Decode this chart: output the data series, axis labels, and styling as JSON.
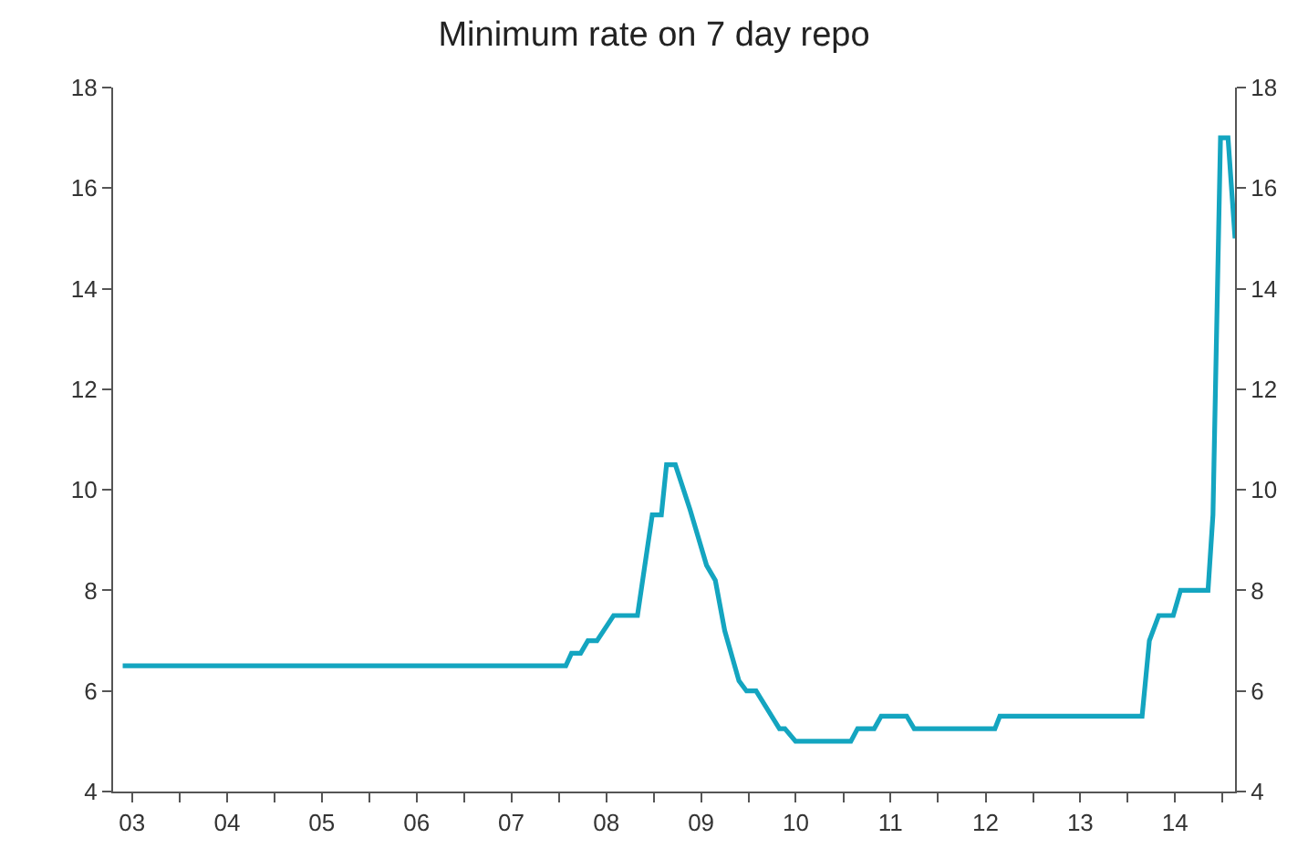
{
  "chart_data": {
    "type": "line",
    "title": "Minimum rate on 7 day repo",
    "x": [
      "2003-05-27",
      "2008-01-28",
      "2008-02-19",
      "2008-03-25",
      "2008-04-22",
      "2008-05-27",
      "2008-07-30",
      "2008-10-30",
      "2008-12-26",
      "2009-01-30",
      "2009-02-19",
      "2009-03-25",
      "2009-05-21",
      "2009-07-23",
      "2009-08-26",
      "2009-10-01",
      "2009-11-25",
      "2009-12-24",
      "2010-01-30",
      "2010-04-30",
      "2010-05-21",
      "2010-07-01",
      "2011-01-30",
      "2011-02-25",
      "2011-04-30",
      "2011-05-27",
      "2011-09-02",
      "2011-10-01",
      "2012-08-07",
      "2012-08-26",
      "2014-02-25",
      "2014-03-25",
      "2014-04-30",
      "2014-06-25",
      "2014-07-23",
      "2014-11-06",
      "2014-11-25",
      "2014-12-24",
      "2015-01-22",
      "2015-02-18"
    ],
    "series": [
      {
        "color": "#14a5c0",
        "values": [
          6.5,
          6.5,
          6.75,
          6.75,
          7.0,
          7.0,
          7.5,
          7.5,
          9.5,
          9.5,
          10.5,
          10.5,
          9.6,
          8.5,
          8.2,
          7.2,
          6.2,
          6.0,
          6.0,
          5.25,
          5.25,
          5.0,
          5.0,
          5.25,
          5.25,
          5.5,
          5.5,
          5.25,
          5.25,
          5.5,
          5.5,
          7.0,
          7.5,
          7.5,
          8.0,
          8.0,
          9.5,
          17,
          17,
          15
        ]
      }
    ],
    "xlim": [
      "2003-04-20",
      "2015-02-18"
    ],
    "xticks": [
      {
        "value": "2003-07-02",
        "label": "03"
      },
      {
        "value": "2004-01-01",
        "label": null
      },
      {
        "value": "2004-07-02",
        "label": "04"
      },
      {
        "value": "2005-01-01",
        "label": null
      },
      {
        "value": "2005-07-02",
        "label": "05"
      },
      {
        "value": "2006-01-01",
        "label": null
      },
      {
        "value": "2006-07-02",
        "label": "06"
      },
      {
        "value": "2007-01-01",
        "label": null
      },
      {
        "value": "2007-07-02",
        "label": "07"
      },
      {
        "value": "2008-01-01",
        "label": null
      },
      {
        "value": "2008-07-02",
        "label": "08"
      },
      {
        "value": "2009-01-01",
        "label": null
      },
      {
        "value": "2009-07-02",
        "label": "09"
      },
      {
        "value": "2010-01-01",
        "label": null
      },
      {
        "value": "2010-07-02",
        "label": "10"
      },
      {
        "value": "2011-01-01",
        "label": null
      },
      {
        "value": "2011-07-02",
        "label": "11"
      },
      {
        "value": "2012-01-01",
        "label": null
      },
      {
        "value": "2012-07-02",
        "label": "12"
      },
      {
        "value": "2013-01-01",
        "label": null
      },
      {
        "value": "2013-07-02",
        "label": "13"
      },
      {
        "value": "2014-01-01",
        "label": null
      },
      {
        "value": "2014-07-02",
        "label": "14"
      },
      {
        "value": "2015-01-01",
        "label": null
      }
    ],
    "ylim": [
      4,
      18
    ],
    "yticks": [
      4,
      6,
      8,
      10,
      12,
      14,
      16,
      18
    ],
    "y2lim": [
      4,
      18
    ],
    "y2ticks": [
      4,
      6,
      8,
      10,
      12,
      14,
      16,
      18
    ],
    "legend": false,
    "marker": "none",
    "line_style": "solid"
  }
}
